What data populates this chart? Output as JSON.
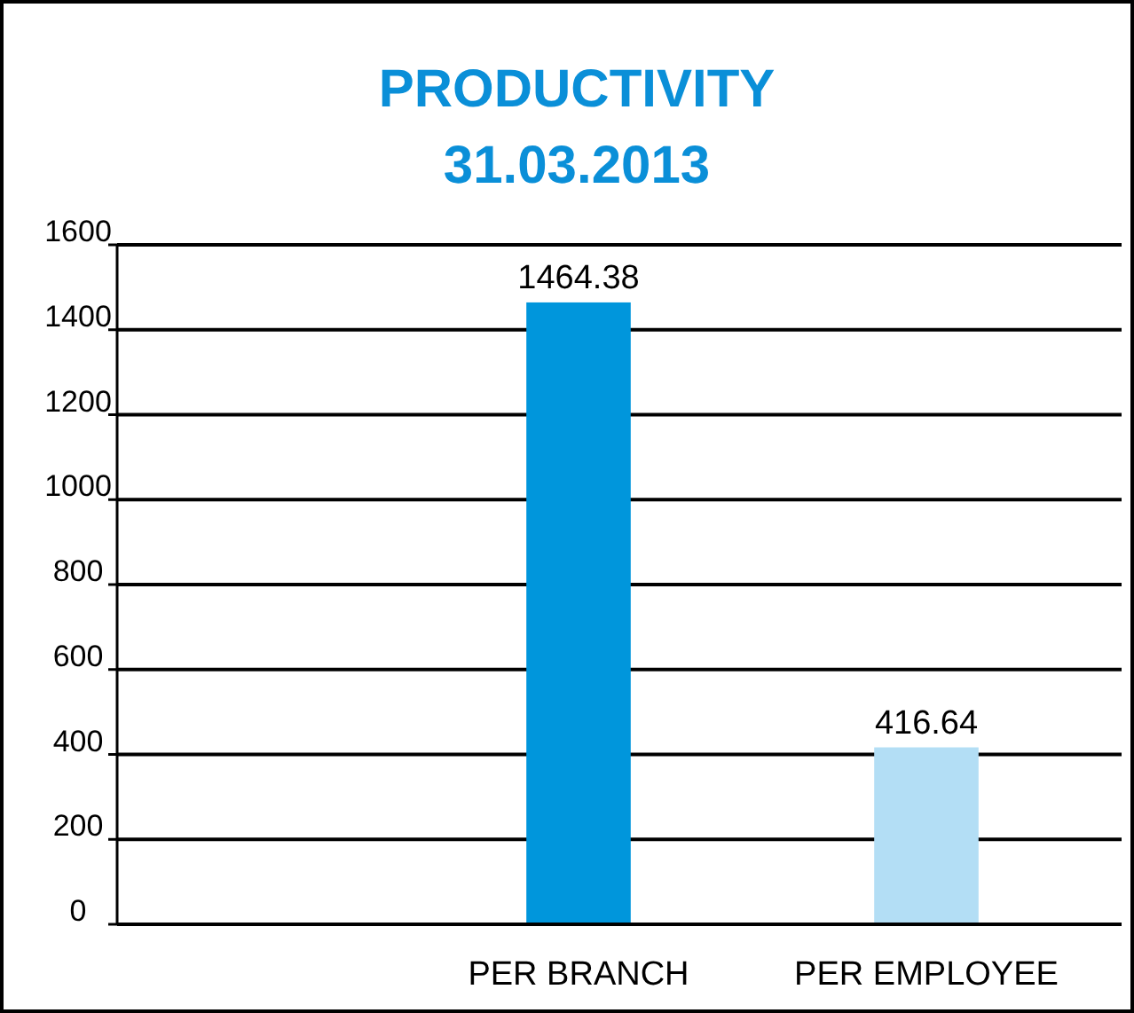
{
  "chart_data": {
    "type": "bar",
    "title": "PRODUCTIVITY\n31.03.2013",
    "categories": [
      null,
      "PER BRANCH",
      "PER EMPLOYEE"
    ],
    "values": [
      null,
      1464.38,
      416.64
    ],
    "colors": [
      null,
      "#0096dc",
      "#b3def5"
    ],
    "ylim": [
      0,
      1600
    ],
    "yticks": [
      0,
      200,
      400,
      600,
      800,
      1000,
      1200,
      1400,
      1600
    ],
    "grid": "y",
    "data_labels": true
  }
}
